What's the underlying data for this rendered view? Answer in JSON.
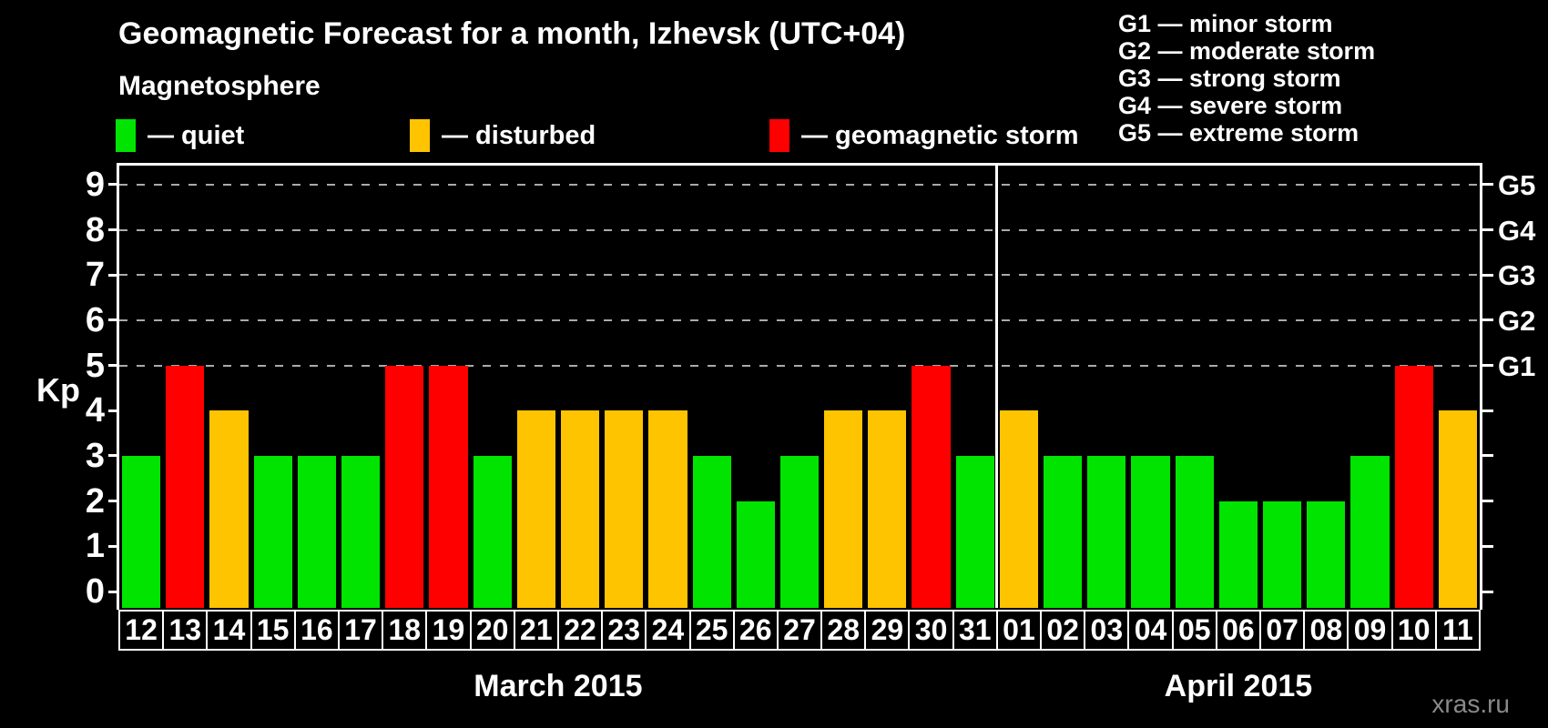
{
  "title": "Geomagnetic Forecast for a month, Izhevsk (UTC+04)",
  "legend": {
    "heading": "Magnetosphere",
    "items": [
      {
        "key": "quiet",
        "label": "— quiet"
      },
      {
        "key": "disturbed",
        "label": "— disturbed"
      },
      {
        "key": "storm",
        "label": "— geomagnetic storm"
      }
    ]
  },
  "g_scale_legend": [
    "G1 — minor storm",
    "G2 — moderate storm",
    "G3 — strong storm",
    "G4 — severe storm",
    "G5 — extreme storm"
  ],
  "watermark": "xras.ru",
  "colors": {
    "quiet": "#00e400",
    "disturbed": "#ffc400",
    "storm": "#ff0000",
    "gridline": "#aaaaaa",
    "axis": "#ffffff",
    "background": "#000000"
  },
  "chart_data": {
    "type": "bar",
    "ylabel": "Kp",
    "ylim": [
      0,
      9
    ],
    "yticks": [
      0,
      1,
      2,
      3,
      4,
      5,
      6,
      7,
      8,
      9
    ],
    "gridlines": [
      5,
      6,
      7,
      8,
      9
    ],
    "grid_style": "dashed",
    "legend_position": "top",
    "right_axis_labels": [
      {
        "label": "G1",
        "value": 5
      },
      {
        "label": "G2",
        "value": 6
      },
      {
        "label": "G3",
        "value": 7
      },
      {
        "label": "G4",
        "value": 8
      },
      {
        "label": "G5",
        "value": 9
      }
    ],
    "months": [
      {
        "label": "March 2015",
        "days": 20
      },
      {
        "label": "April 2015",
        "days": 11
      }
    ],
    "series": [
      {
        "day": "12",
        "kp": 3,
        "status": "quiet"
      },
      {
        "day": "13",
        "kp": 5,
        "status": "storm"
      },
      {
        "day": "14",
        "kp": 4,
        "status": "disturbed"
      },
      {
        "day": "15",
        "kp": 3,
        "status": "quiet"
      },
      {
        "day": "16",
        "kp": 3,
        "status": "quiet"
      },
      {
        "day": "17",
        "kp": 3,
        "status": "quiet"
      },
      {
        "day": "18",
        "kp": 5,
        "status": "storm"
      },
      {
        "day": "19",
        "kp": 5,
        "status": "storm"
      },
      {
        "day": "20",
        "kp": 3,
        "status": "quiet"
      },
      {
        "day": "21",
        "kp": 4,
        "status": "disturbed"
      },
      {
        "day": "22",
        "kp": 4,
        "status": "disturbed"
      },
      {
        "day": "23",
        "kp": 4,
        "status": "disturbed"
      },
      {
        "day": "24",
        "kp": 4,
        "status": "disturbed"
      },
      {
        "day": "25",
        "kp": 3,
        "status": "quiet"
      },
      {
        "day": "26",
        "kp": 2,
        "status": "quiet"
      },
      {
        "day": "27",
        "kp": 3,
        "status": "quiet"
      },
      {
        "day": "28",
        "kp": 4,
        "status": "disturbed"
      },
      {
        "day": "29",
        "kp": 4,
        "status": "disturbed"
      },
      {
        "day": "30",
        "kp": 5,
        "status": "storm"
      },
      {
        "day": "31",
        "kp": 3,
        "status": "quiet"
      },
      {
        "day": "01",
        "kp": 4,
        "status": "disturbed"
      },
      {
        "day": "02",
        "kp": 3,
        "status": "quiet"
      },
      {
        "day": "03",
        "kp": 3,
        "status": "quiet"
      },
      {
        "day": "04",
        "kp": 3,
        "status": "quiet"
      },
      {
        "day": "05",
        "kp": 3,
        "status": "quiet"
      },
      {
        "day": "06",
        "kp": 2,
        "status": "quiet"
      },
      {
        "day": "07",
        "kp": 2,
        "status": "quiet"
      },
      {
        "day": "08",
        "kp": 2,
        "status": "quiet"
      },
      {
        "day": "09",
        "kp": 3,
        "status": "quiet"
      },
      {
        "day": "10",
        "kp": 5,
        "status": "storm"
      },
      {
        "day": "11",
        "kp": 4,
        "status": "disturbed"
      }
    ]
  }
}
